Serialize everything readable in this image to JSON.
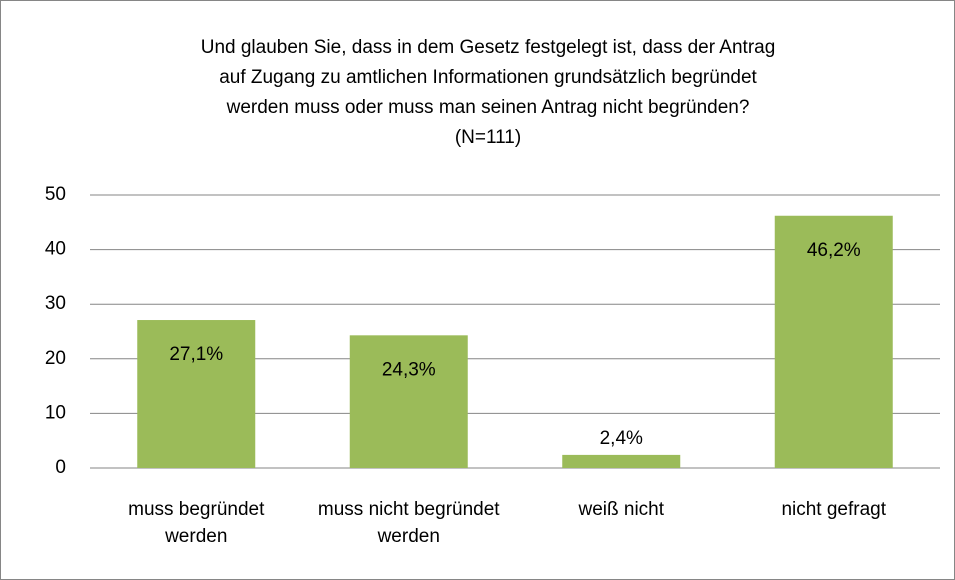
{
  "chart_data": {
    "type": "bar",
    "title": [
      "Und glauben Sie, dass in dem Gesetz festgelegt ist, dass der Antrag",
      "auf Zugang zu amtlichen Informationen grundsätzlich begründet",
      "werden muss oder muss man seinen Antrag nicht begründen?",
      "(N=111)"
    ],
    "categories": [
      "muss begründet werden",
      "muss nicht begründet werden",
      "weiß nicht",
      "nicht gefragt"
    ],
    "values": [
      27.1,
      24.3,
      2.4,
      46.2
    ],
    "value_labels": [
      "27,1%",
      "24,3%",
      "2,4%",
      "46,2%"
    ],
    "color": "#9bbb59",
    "ylim": [
      0,
      50
    ],
    "yticks": [
      0,
      10,
      20,
      30,
      40,
      50
    ],
    "grid": true
  }
}
